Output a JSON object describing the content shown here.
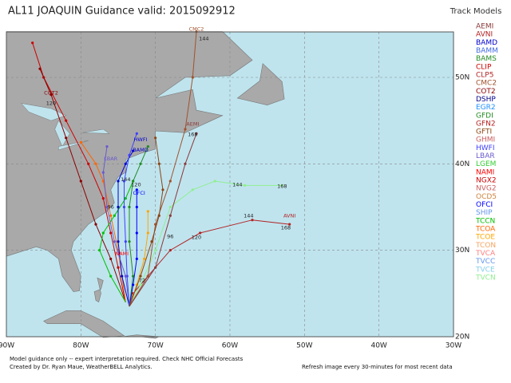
{
  "header": {
    "title": "AL11 JOAQUIN Guidance valid: 2015092912",
    "legend_title": "Track Models"
  },
  "legend": [
    {
      "name": "AEMI",
      "color": "#8b3a3a"
    },
    {
      "name": "AVNI",
      "color": "#b22222"
    },
    {
      "name": "BAMD",
      "color": "#0000cd"
    },
    {
      "name": "BAMM",
      "color": "#4169e1"
    },
    {
      "name": "BAMS",
      "color": "#228b22"
    },
    {
      "name": "CLIP",
      "color": "#cd0000"
    },
    {
      "name": "CLP5",
      "color": "#b22222"
    },
    {
      "name": "CMC2",
      "color": "#a0522d"
    },
    {
      "name": "COT2",
      "color": "#8b0000"
    },
    {
      "name": "DSHP",
      "color": "#00008b"
    },
    {
      "name": "EGR2",
      "color": "#1e90ff"
    },
    {
      "name": "GFDI",
      "color": "#228b22"
    },
    {
      "name": "GFN2",
      "color": "#b22222"
    },
    {
      "name": "GFTI",
      "color": "#8b4513"
    },
    {
      "name": "GHMI",
      "color": "#cd5c5c"
    },
    {
      "name": "HWFI",
      "color": "#4040ff"
    },
    {
      "name": "LBAR",
      "color": "#6a5acd"
    },
    {
      "name": "LGEM",
      "color": "#32cd32"
    },
    {
      "name": "NAMI",
      "color": "#ff0000"
    },
    {
      "name": "NGX2",
      "color": "#cc0000"
    },
    {
      "name": "NVG2",
      "color": "#cd6060"
    },
    {
      "name": "OCD5",
      "color": "#cd853f"
    },
    {
      "name": "OFCI",
      "color": "#0000ff"
    },
    {
      "name": "SHIP",
      "color": "#6495ed"
    },
    {
      "name": "TCCN",
      "color": "#00c000"
    },
    {
      "name": "TCOA",
      "color": "#ff6600"
    },
    {
      "name": "TCOE",
      "color": "#ffa500"
    },
    {
      "name": "TCON",
      "color": "#f4a460"
    },
    {
      "name": "TVCA",
      "color": "#ff8080"
    },
    {
      "name": "TVCC",
      "color": "#6495ed"
    },
    {
      "name": "TVCE",
      "color": "#87ceeb"
    },
    {
      "name": "TVCN",
      "color": "#90ee90"
    }
  ],
  "map": {
    "lon_labels": [
      "90W",
      "80W",
      "70W",
      "60W",
      "50W",
      "40W",
      "30W"
    ],
    "lat_labels": [
      "50N",
      "40N",
      "30N",
      "20N"
    ],
    "track_labels": [
      "CMC2",
      "144",
      "COT2",
      "120",
      "AEMI",
      "168",
      "144",
      "168",
      "AVNI",
      "144",
      "168",
      "HWFI",
      "BAMD",
      "LBAR",
      "OFCI",
      "NAMI",
      "120",
      "96",
      "96",
      "72",
      "120",
      "144"
    ]
  },
  "footer": {
    "line1": "Model guidance only -- expert interpretation required.  Check NHC Official Forecasts",
    "line2": "Created by Dr. Ryan Maue, WeatherBELL Analytics.",
    "refresh": "Refresh image every 30-minutes for most recent data"
  }
}
